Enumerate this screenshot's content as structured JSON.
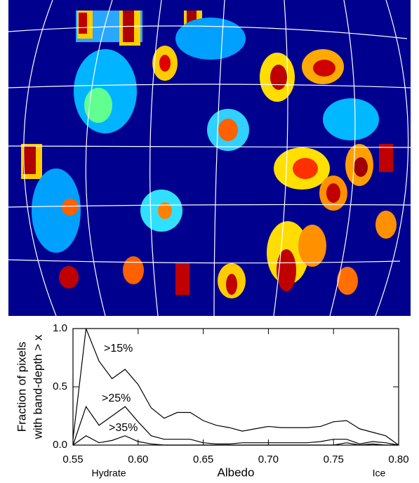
{
  "chart_data": {
    "type": "line",
    "ylabel": [
      "Fraction of pixels",
      "with band-depth > x"
    ],
    "xlabel": "Albedo",
    "xlabel_left": "Hydrate",
    "xlabel_right": "Ice",
    "x": [
      0.55,
      0.56,
      0.57,
      0.58,
      0.59,
      0.6,
      0.61,
      0.62,
      0.63,
      0.64,
      0.65,
      0.66,
      0.67,
      0.68,
      0.69,
      0.7,
      0.71,
      0.72,
      0.73,
      0.74,
      0.75,
      0.76,
      0.77,
      0.78,
      0.79,
      0.8
    ],
    "series": [
      {
        "name": ">15%",
        "color": "#000000",
        "values": [
          0.05,
          1.0,
          0.72,
          0.57,
          0.65,
          0.52,
          0.32,
          0.23,
          0.28,
          0.28,
          0.21,
          0.17,
          0.15,
          0.12,
          0.14,
          0.16,
          0.15,
          0.15,
          0.15,
          0.16,
          0.2,
          0.21,
          0.14,
          0.11,
          0.08,
          0.0
        ]
      },
      {
        "name": ">25%",
        "color": "#000000",
        "values": [
          0.0,
          0.33,
          0.17,
          0.25,
          0.33,
          0.2,
          0.08,
          0.05,
          0.05,
          0.05,
          0.02,
          0.01,
          0.01,
          0.02,
          0.02,
          0.02,
          0.02,
          0.02,
          0.02,
          0.03,
          0.05,
          0.05,
          0.01,
          0.03,
          0.02,
          0.0
        ]
      },
      {
        "name": ">35%",
        "color": "#000000",
        "values": [
          0.0,
          0.08,
          0.02,
          0.04,
          0.08,
          0.03,
          0.01,
          0.0,
          0.0,
          0.0,
          0.0,
          0.0,
          0.0,
          0.0,
          0.0,
          0.0,
          0.0,
          0.0,
          0.0,
          0.0,
          0.0,
          0.02,
          0.0,
          0.01,
          0.0,
          0.0
        ]
      }
    ],
    "xlim": [
      0.55,
      0.8
    ],
    "xticks": [
      0.55,
      {
        "value": 0.6,
        "label": "0.60"
      },
      0.65,
      {
        "value": 0.7,
        "label": "0.70"
      },
      0.75,
      {
        "value": 0.8,
        "label": "0.80"
      }
    ],
    "ylim": [
      0,
      1
    ],
    "yticks": [
      {
        "value": 0,
        "label": "0.0"
      },
      0.5,
      {
        "value": 1,
        "label": "1.0"
      }
    ],
    "grid": false
  }
}
